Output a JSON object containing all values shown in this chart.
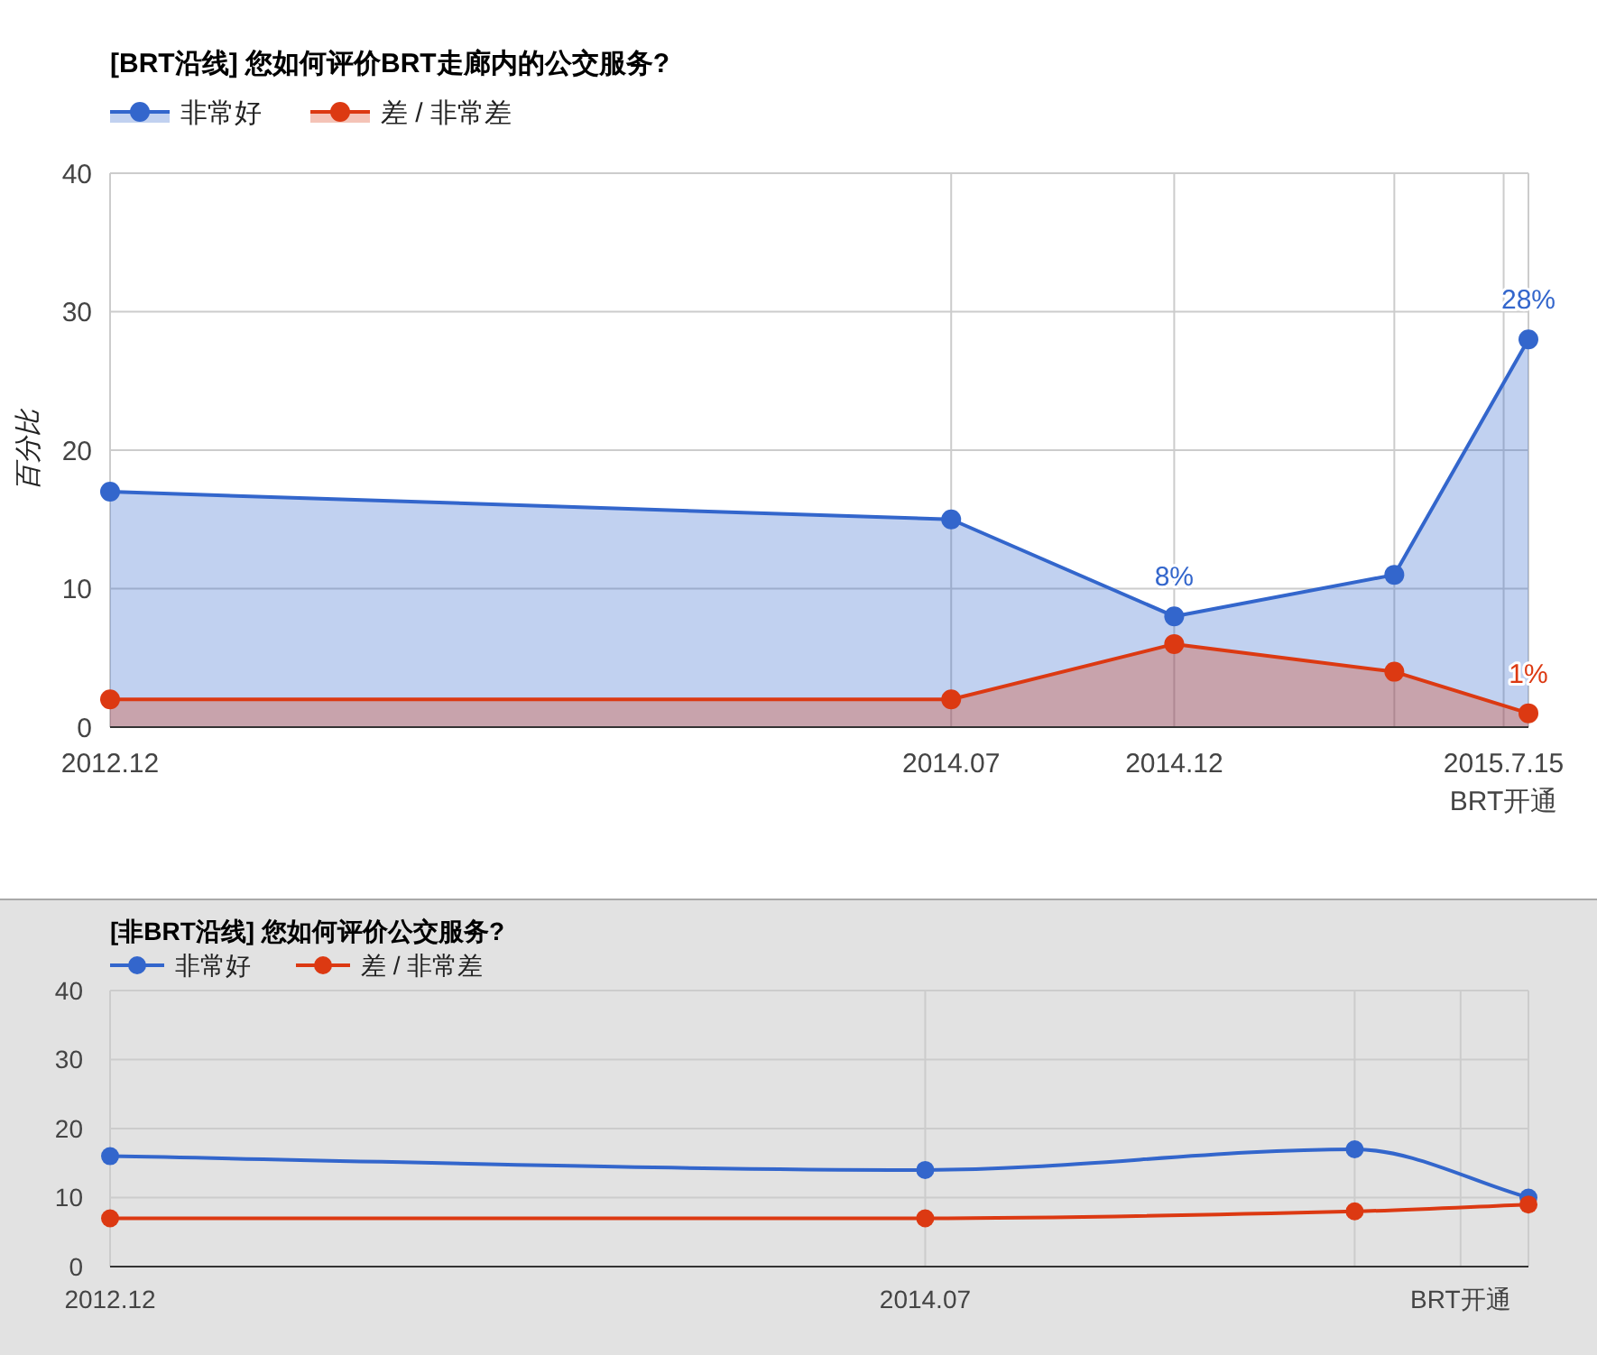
{
  "chart_data": [
    {
      "type": "area",
      "title": "[BRT沿线] 您如何评价BRT走廊内的公交服务?",
      "ylabel": "百分比",
      "x": [
        "2012-12",
        "2014-07",
        "2014-12",
        "2015-05",
        "2015-08"
      ],
      "series": [
        {
          "name": "非常好",
          "color": "#3366cc",
          "values": [
            17,
            15,
            8,
            11,
            28
          ],
          "value_labels": [
            null,
            null,
            "8%",
            null,
            "28%"
          ]
        },
        {
          "name": "差 / 非常差",
          "color": "#dc3912",
          "values": [
            2,
            2,
            6,
            4,
            1
          ],
          "value_labels": [
            null,
            null,
            null,
            null,
            "1%"
          ]
        }
      ],
      "xlim": [
        "2012-12",
        "2015-08"
      ],
      "xticks": [
        {
          "value": "2012-12",
          "label": "2012.12"
        },
        {
          "value": "2014-07",
          "label": "2014.07"
        },
        {
          "value": "2014-12",
          "label": "2014.12"
        },
        {
          "value": "2015-05",
          "label": null
        },
        {
          "value": "2015-07-15",
          "label": "2015.7.15\nBRT开通"
        }
      ],
      "ylim": [
        0,
        40
      ],
      "yticks": [
        0,
        10,
        20,
        30,
        40
      ],
      "grid": true,
      "legend": "top left",
      "marker": "circle",
      "line_style": "solid"
    },
    {
      "type": "line",
      "title": "[非BRT沿线] 您如何评价公交服务?",
      "x": [
        "2012-12",
        "2014-07",
        "2015-05",
        "2015-09"
      ],
      "series": [
        {
          "name": "非常好",
          "color": "#3366cc",
          "values": [
            16,
            14,
            17,
            10
          ]
        },
        {
          "name": "差 / 非常差",
          "color": "#dc3912",
          "values": [
            7,
            7,
            8,
            9
          ]
        }
      ],
      "xlim": [
        "2012-12",
        "2015-09"
      ],
      "xticks": [
        {
          "value": "2012-12",
          "label": "2012.12"
        },
        {
          "value": "2014-07",
          "label": "2014.07"
        },
        {
          "value": "2015-05",
          "label": null
        },
        {
          "value": "2015-07-15",
          "label": "BRT开通"
        }
      ],
      "ylim": [
        0,
        40
      ],
      "yticks": [
        0,
        10,
        20,
        30,
        40
      ],
      "grid": true,
      "legend": "top left",
      "marker": "circle",
      "line_style": "solid"
    }
  ]
}
